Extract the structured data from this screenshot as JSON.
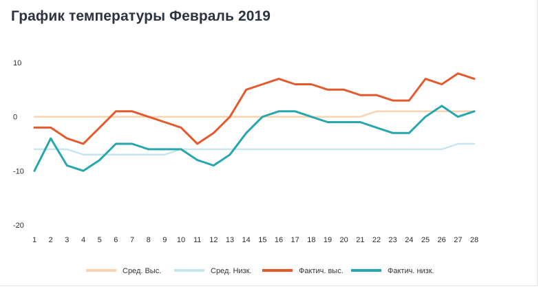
{
  "title": "График температуры Февраль 2019",
  "chart_data": {
    "type": "line",
    "title": "График температуры Февраль 2019",
    "xlabel": "",
    "ylabel": "",
    "x": [
      1,
      2,
      3,
      4,
      5,
      6,
      7,
      8,
      9,
      10,
      11,
      12,
      13,
      14,
      15,
      16,
      17,
      18,
      19,
      20,
      21,
      22,
      23,
      24,
      25,
      26,
      27,
      28
    ],
    "ylim": [
      -20,
      10
    ],
    "yticks": [
      10,
      0,
      -10,
      -20
    ],
    "grid": false,
    "legend_position": "bottom",
    "series": [
      {
        "name": "Сред. Выс.",
        "color": "#fdd3b0",
        "values": [
          0,
          0,
          0,
          0,
          0,
          0,
          0,
          0,
          0,
          0,
          0,
          0,
          0,
          0,
          0,
          0,
          0,
          0,
          0,
          0,
          0,
          1,
          1,
          1,
          1,
          1,
          1,
          1
        ]
      },
      {
        "name": "Сред. Низк.",
        "color": "#c6e6ef",
        "values": [
          -6,
          -6,
          -6,
          -7,
          -7,
          -7,
          -7,
          -7,
          -7,
          -6,
          -6,
          -6,
          -6,
          -6,
          -6,
          -6,
          -6,
          -6,
          -6,
          -6,
          -6,
          -6,
          -6,
          -6,
          -6,
          -6,
          -5,
          -5
        ]
      },
      {
        "name": "Фактич. выс.",
        "color": "#e45a2c",
        "values": [
          -2,
          -2,
          -4,
          -5,
          -2,
          1,
          1,
          0,
          -1,
          -2,
          -5,
          -3,
          0,
          5,
          6,
          7,
          6,
          6,
          5,
          5,
          4,
          4,
          3,
          3,
          7,
          6,
          8,
          7
        ]
      },
      {
        "name": "Фактич. низк.",
        "color": "#26a6ad",
        "values": [
          -10,
          -4,
          -9,
          -10,
          -8,
          -5,
          -5,
          -6,
          -6,
          -6,
          -8,
          -9,
          -7,
          -3,
          0,
          1,
          1,
          0,
          -1,
          -1,
          -1,
          -2,
          -3,
          -3,
          0,
          2,
          0,
          1
        ]
      }
    ]
  }
}
